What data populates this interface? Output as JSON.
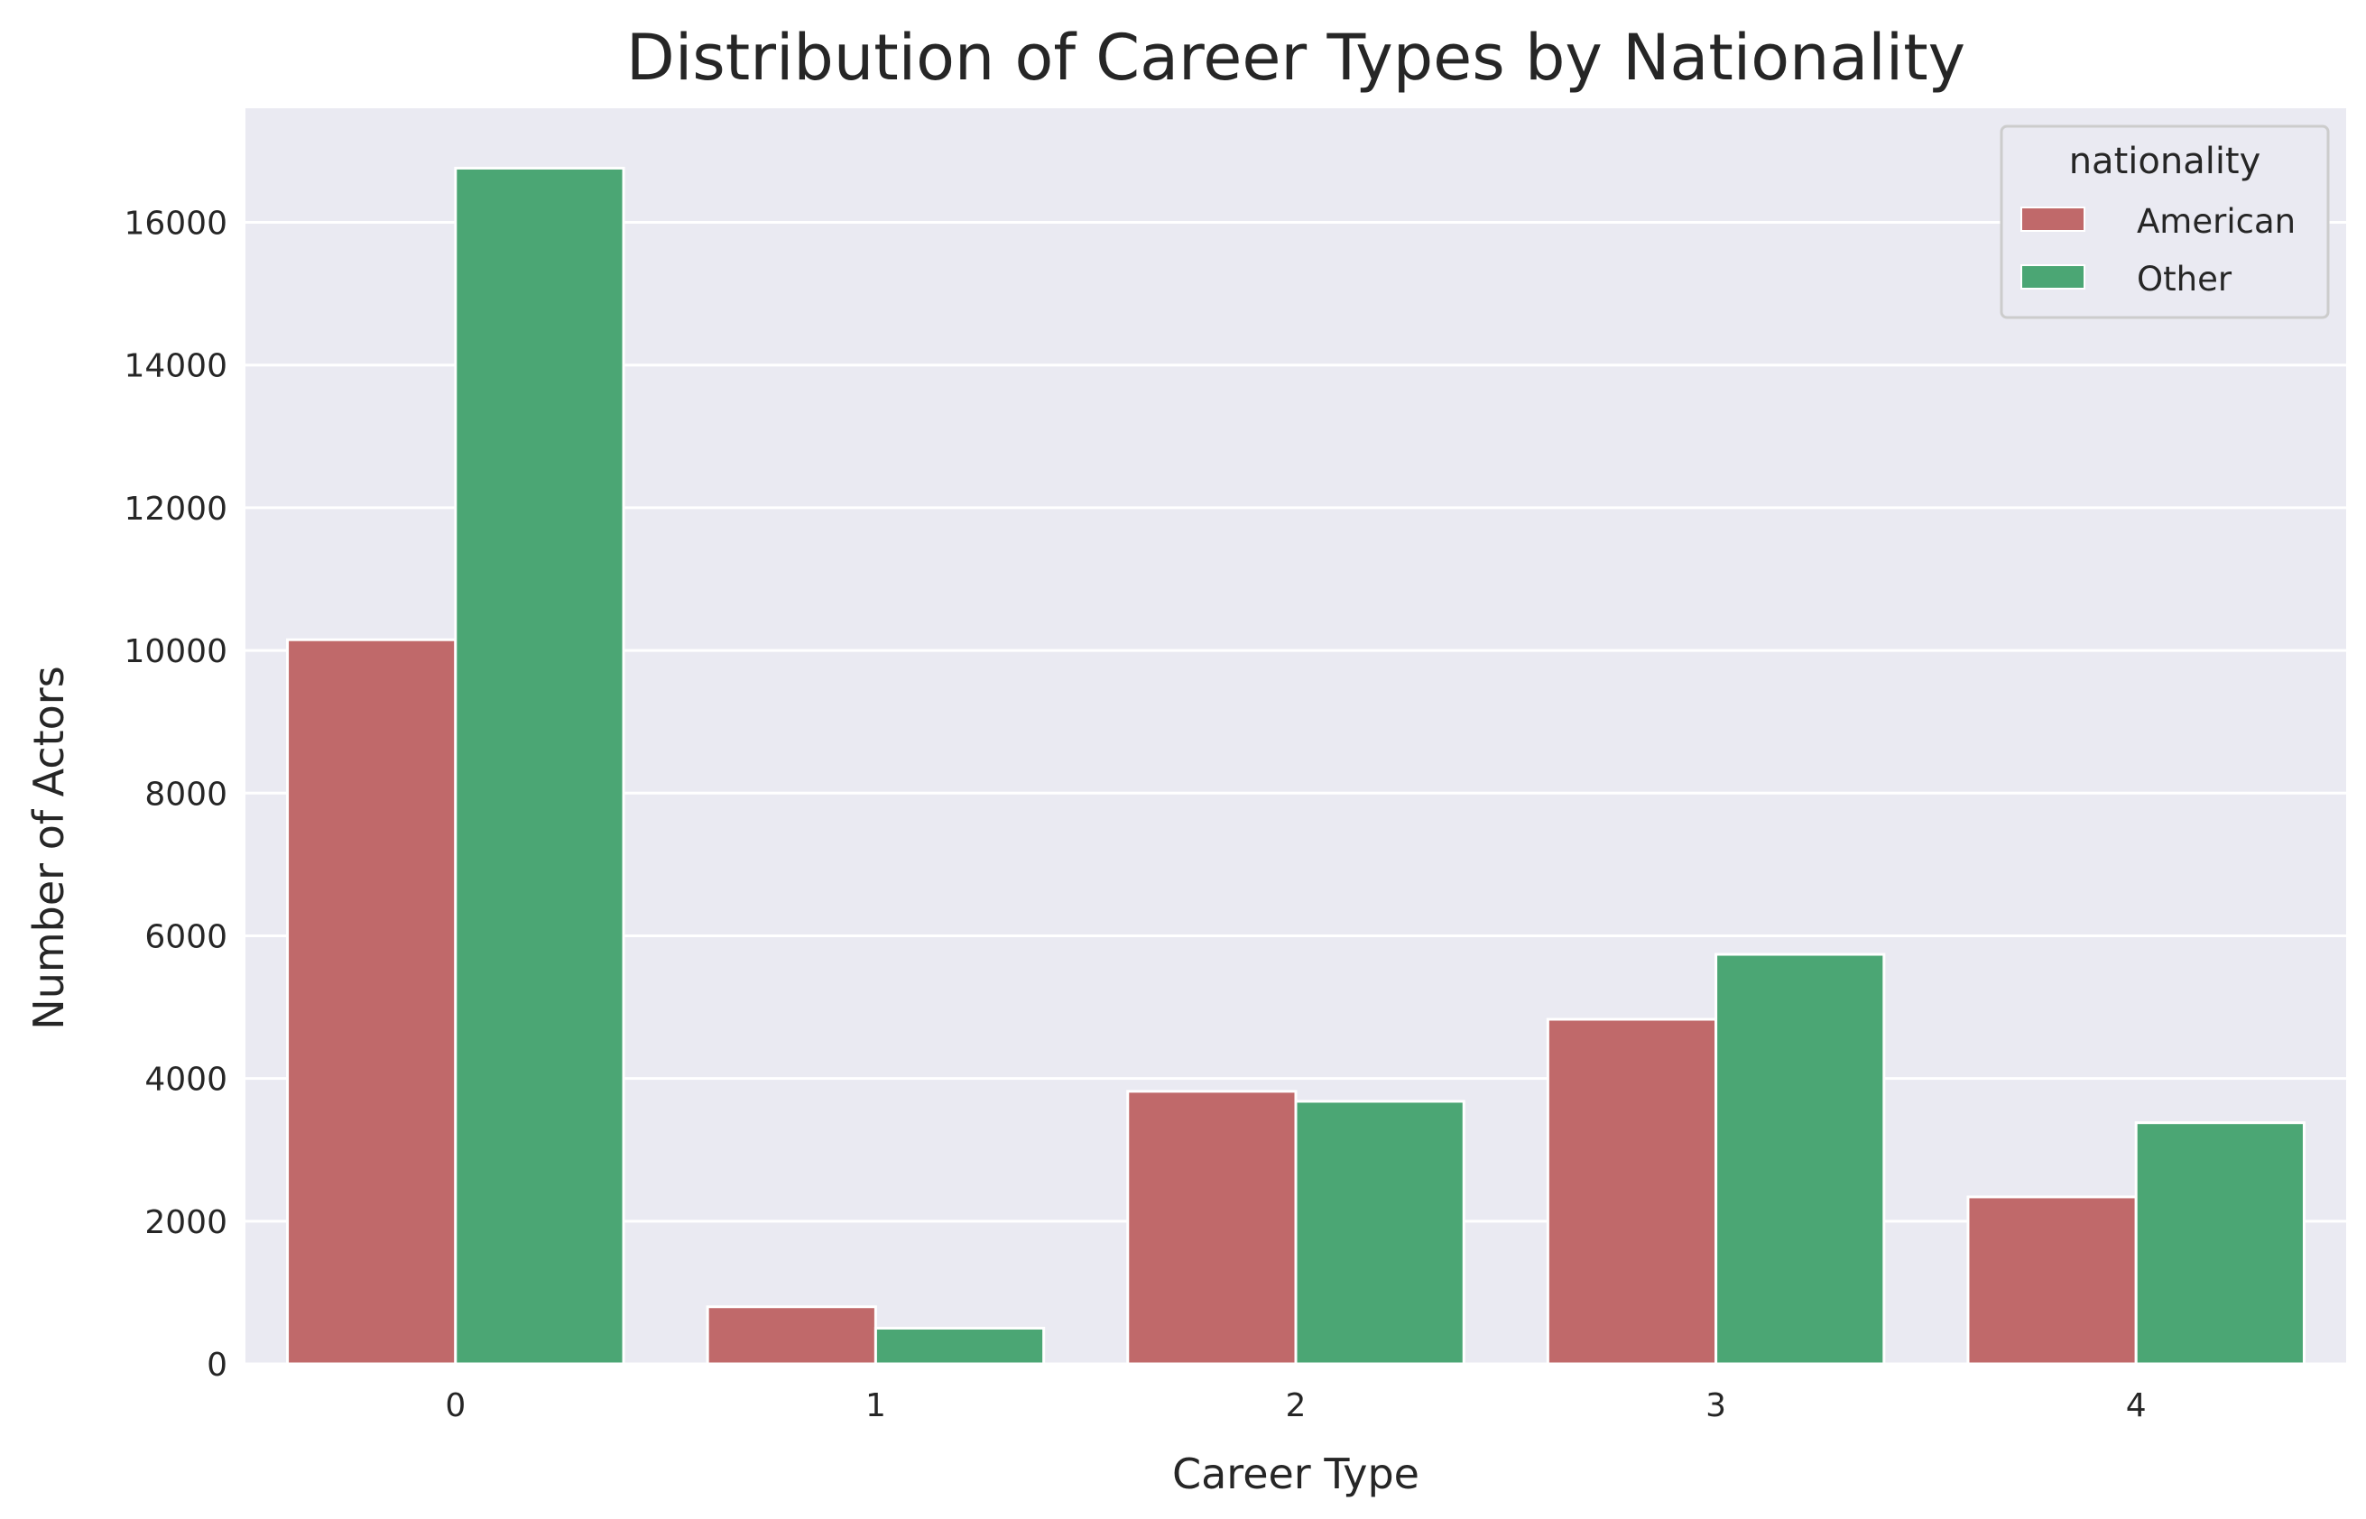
{
  "chart_data": {
    "type": "bar",
    "title": "Distribution of Career Types by Nationality",
    "xlabel": "Career Type",
    "ylabel": "Number of Actors",
    "categories": [
      "0",
      "1",
      "2",
      "3",
      "4"
    ],
    "series": [
      {
        "name": "American",
        "color": "#c0696a",
        "values": [
          10150,
          800,
          3820,
          4830,
          2340
        ]
      },
      {
        "name": "Other",
        "color": "#4ba674",
        "values": [
          16760,
          500,
          3680,
          5740,
          3380
        ]
      }
    ],
    "yticks": [
      "0",
      "2000",
      "4000",
      "6000",
      "8000",
      "10000",
      "12000",
      "14000",
      "16000"
    ],
    "ylim": [
      0,
      17600
    ],
    "legend": {
      "title": "nationality",
      "placement": "top-right"
    },
    "grid": true,
    "background": "#eaeaf2"
  }
}
